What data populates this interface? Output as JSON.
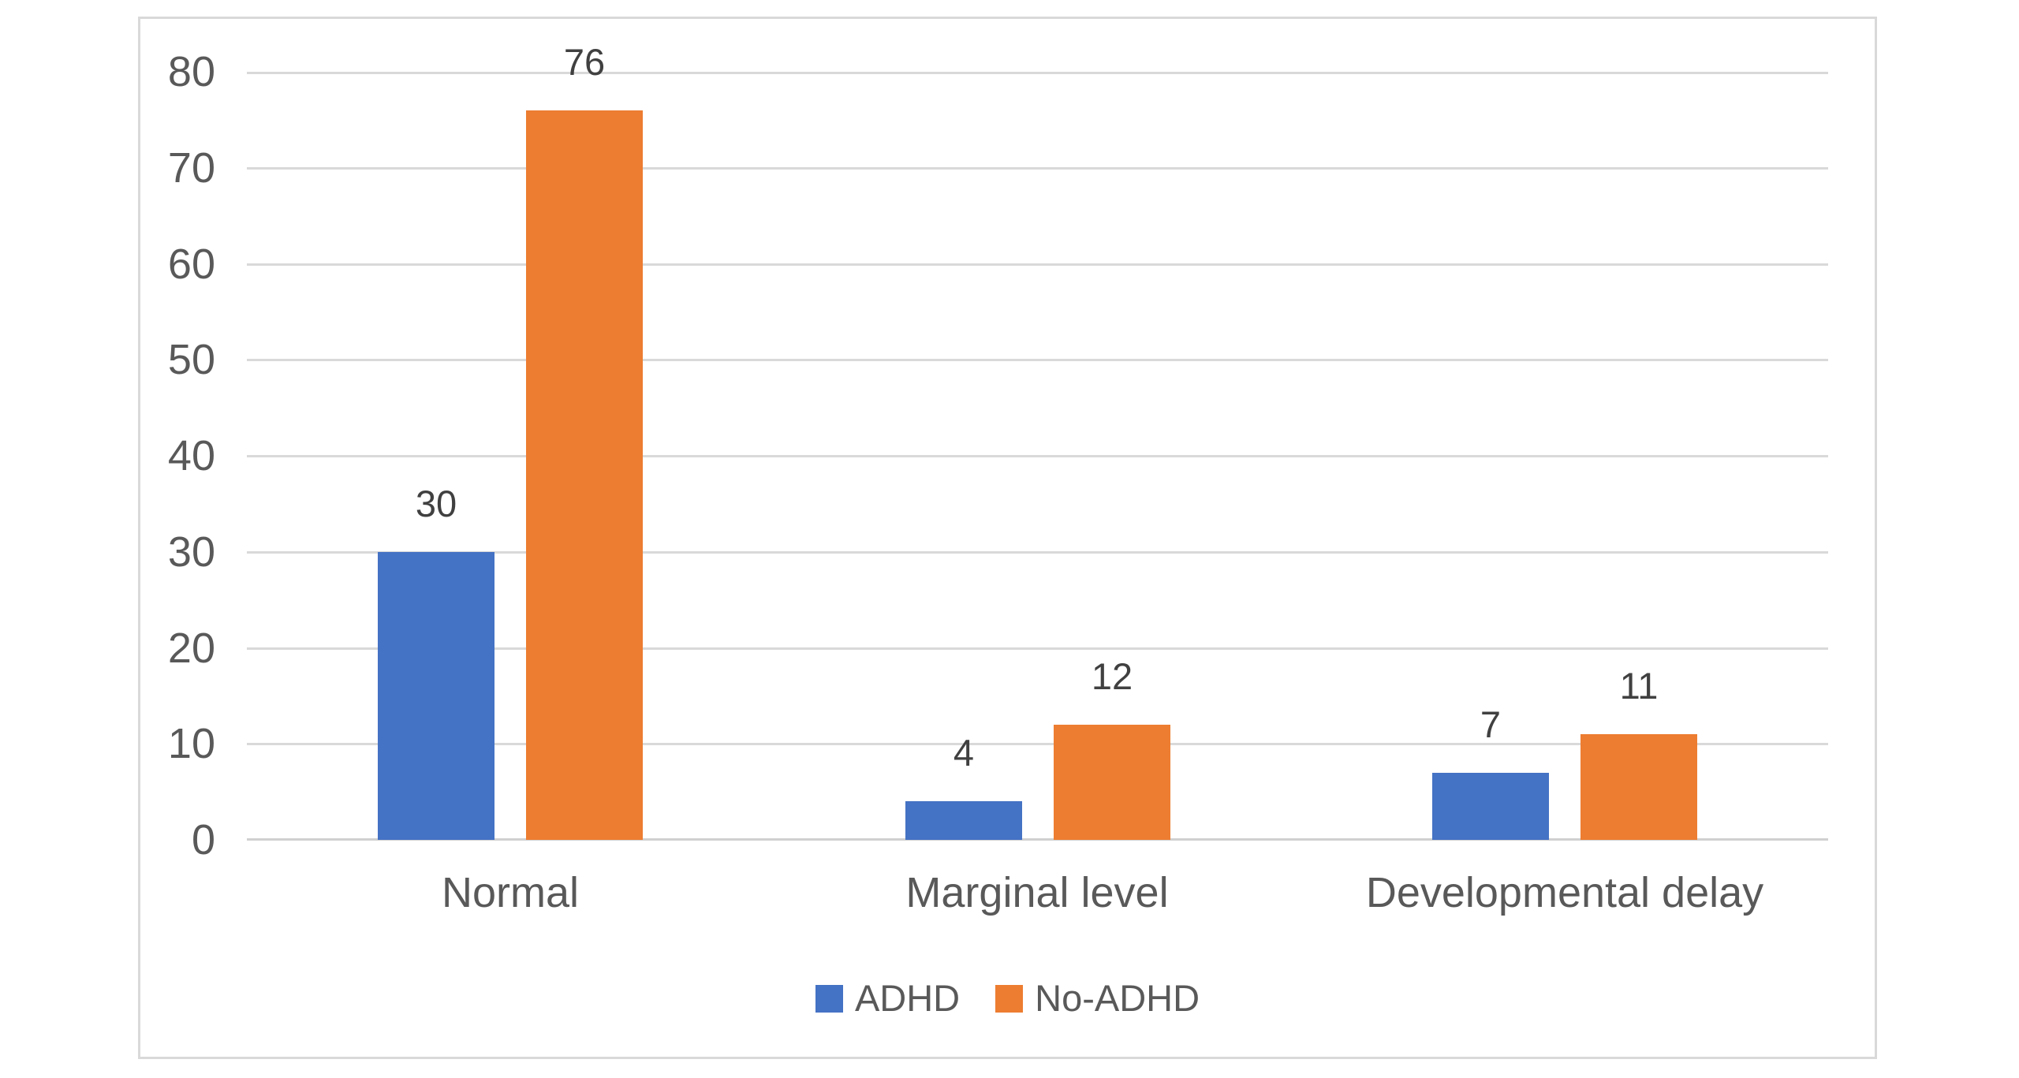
{
  "chart_data": {
    "type": "bar",
    "categories": [
      "Normal",
      "Marginal level",
      "Developmental delay"
    ],
    "series": [
      {
        "name": "ADHD",
        "color": "#4472C4",
        "values": [
          30,
          4,
          7
        ]
      },
      {
        "name": "No-ADHD",
        "color": "#ED7D31",
        "values": [
          76,
          12,
          11
        ]
      }
    ],
    "data_labels": {
      "ADHD": [
        "30",
        "4",
        "7"
      ],
      "No-ADHD": [
        "76",
        "12",
        "11"
      ]
    },
    "y_axis": {
      "min": 0,
      "max": 80,
      "step": 10,
      "tick_labels": [
        "0",
        "10",
        "20",
        "30",
        "40",
        "50",
        "60",
        "70",
        "80"
      ]
    },
    "legend": {
      "position": "bottom",
      "entries": [
        "ADHD",
        "No-ADHD"
      ]
    },
    "grid": true,
    "colors": {
      "gridline": "#d9d9d9",
      "axis_line": "#d0d0d0",
      "axis_text": "#595959",
      "category_text": "#595959",
      "legend_text": "#595959",
      "data_label_text": "#404040",
      "figure_border": "#d9d9d9",
      "background": "#ffffff"
    }
  }
}
